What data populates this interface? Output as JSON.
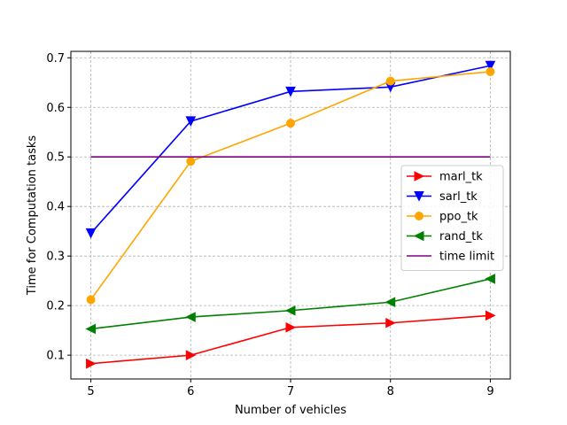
{
  "chart_data": {
    "type": "line",
    "title": "",
    "xlabel": "Number of vehicles",
    "ylabel": "Time for Computation tasks",
    "x": [
      5,
      6,
      7,
      8,
      9
    ],
    "xticks": [
      "5",
      "6",
      "7",
      "8",
      "9"
    ],
    "yticks": [
      "0.1",
      "0.2",
      "0.3",
      "0.4",
      "0.5",
      "0.6",
      "0.7"
    ],
    "xlim": [
      4.8,
      9.2
    ],
    "ylim": [
      0.052,
      0.713
    ],
    "grid": true,
    "legend_position": "center-right",
    "series": [
      {
        "name": "marl_tk",
        "color": "#ff0000",
        "marker": "triangle-right",
        "values": [
          0.083,
          0.1,
          0.156,
          0.165,
          0.18
        ]
      },
      {
        "name": "sarl_tk",
        "color": "#0000ff",
        "marker": "triangle-down",
        "values": [
          0.346,
          0.572,
          0.632,
          0.641,
          0.684
        ]
      },
      {
        "name": "ppo_tk",
        "color": "#ffa500",
        "marker": "circle",
        "values": [
          0.212,
          0.491,
          0.568,
          0.653,
          0.672
        ]
      },
      {
        "name": "rand_tk",
        "color": "#008000",
        "marker": "triangle-left",
        "values": [
          0.153,
          0.177,
          0.19,
          0.207,
          0.254
        ]
      },
      {
        "name": "time limit",
        "color": "#800080",
        "marker": "none",
        "values": [
          0.5,
          0.5,
          0.5,
          0.5,
          0.5
        ]
      }
    ]
  }
}
